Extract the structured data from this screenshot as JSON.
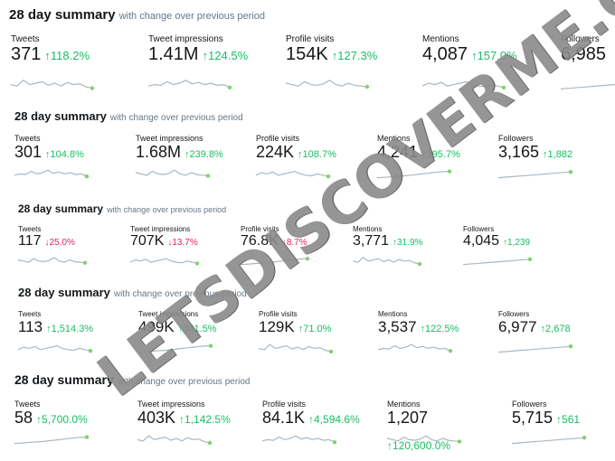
{
  "colors": {
    "up": "#17bf63",
    "down": "#e0245e",
    "spark": "#aab8c2",
    "dot": "#7cd46a"
  },
  "panels": [
    {
      "title": "28 day summary",
      "subtitle": "with change over previous period",
      "metrics": [
        {
          "label": "Tweets",
          "value": "371",
          "change": "118.2%",
          "dir": "up"
        },
        {
          "label": "Tweet impressions",
          "value": "1.41M",
          "change": "124.5%",
          "dir": "up"
        },
        {
          "label": "Profile visits",
          "value": "154K",
          "change": "127.3%",
          "dir": "up"
        },
        {
          "label": "Mentions",
          "value": "4,087",
          "change": "157.0%",
          "dir": "up"
        },
        {
          "label": "Followers",
          "value": "6,985",
          "change": "",
          "dir": "up"
        }
      ]
    },
    {
      "title": "28 day summary",
      "subtitle": "with change over previous period",
      "metrics": [
        {
          "label": "Tweets",
          "value": "301",
          "change": "104.8%",
          "dir": "up"
        },
        {
          "label": "Tweet impressions",
          "value": "1.68M",
          "change": "239.8%",
          "dir": "up"
        },
        {
          "label": "Profile visits",
          "value": "224K",
          "change": "108.7%",
          "dir": "up"
        },
        {
          "label": "Mentions",
          "value": "4,241",
          "change": "195.7%",
          "dir": "up"
        },
        {
          "label": "Followers",
          "value": "3,165",
          "change": "1,882",
          "dir": "up"
        }
      ]
    },
    {
      "title": "28 day summary",
      "subtitle": "with change over previous period",
      "metrics": [
        {
          "label": "Tweets",
          "value": "117",
          "change": "25.0%",
          "dir": "down"
        },
        {
          "label": "Tweet impressions",
          "value": "707K",
          "change": "13.7%",
          "dir": "down"
        },
        {
          "label": "Profile visits",
          "value": "76.8K",
          "change": "8.7%",
          "dir": "down"
        },
        {
          "label": "Mentions",
          "value": "3,771",
          "change": "31.9%",
          "dir": "up"
        },
        {
          "label": "Followers",
          "value": "4,045",
          "change": "1,239",
          "dir": "up"
        }
      ]
    },
    {
      "title": "28 day summary",
      "subtitle": "with change over previous period",
      "metrics": [
        {
          "label": "Tweets",
          "value": "113",
          "change": "1,514.3%",
          "dir": "up"
        },
        {
          "label": "Tweet impressions",
          "value": "499K",
          "change": "341.5%",
          "dir": "up"
        },
        {
          "label": "Profile visits",
          "value": "129K",
          "change": "71.0%",
          "dir": "up"
        },
        {
          "label": "Mentions",
          "value": "3,537",
          "change": "122.5%",
          "dir": "up"
        },
        {
          "label": "Followers",
          "value": "6,977",
          "change": "2,678",
          "dir": "up"
        }
      ]
    },
    {
      "title": "28 day summary",
      "subtitle": "with change over previous period",
      "metrics": [
        {
          "label": "Tweets",
          "value": "58",
          "change": "5,700.0%",
          "dir": "up"
        },
        {
          "label": "Tweet impressions",
          "value": "403K",
          "change": "1,142.5%",
          "dir": "up"
        },
        {
          "label": "Profile visits",
          "value": "84.1K",
          "change": "4,594.6%",
          "dir": "up"
        },
        {
          "label": "Mentions",
          "value": "1,207",
          "change": "120,600.0%",
          "dir": "up"
        },
        {
          "label": "Followers",
          "value": "5,715",
          "change": "561",
          "dir": "up"
        }
      ]
    }
  ],
  "watermark": "LETSDISCOVERME.COM"
}
